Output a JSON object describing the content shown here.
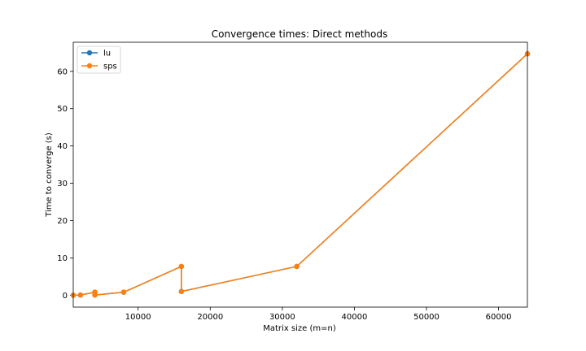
{
  "chart_data": {
    "type": "line",
    "title": "Convergence times: Direct methods",
    "xlabel": "Matrix size (m=n)",
    "ylabel": "Time to converge (s)",
    "xlim": [
      1000,
      64000
    ],
    "ylim": [
      -3.2,
      67.8
    ],
    "xticks": [
      10000,
      20000,
      30000,
      40000,
      50000,
      60000
    ],
    "yticks": [
      0,
      10,
      20,
      30,
      40,
      50,
      60
    ],
    "grid": false,
    "legend_position": "upper-left",
    "series": [
      {
        "name": "lu",
        "color": "#1f77b4",
        "marker": "circle",
        "points": [
          [
            1000,
            0.0
          ],
          [
            2000,
            0.05
          ],
          [
            4000,
            0.8
          ],
          [
            4000,
            0.05
          ],
          [
            8000,
            0.8
          ],
          [
            16000,
            7.7
          ],
          [
            16000,
            1.0
          ],
          [
            32000,
            7.7
          ],
          [
            64000,
            64.7
          ]
        ]
      },
      {
        "name": "sps",
        "color": "#ff7f0e",
        "marker": "circle",
        "points": [
          [
            1000,
            0.0
          ],
          [
            2000,
            0.05
          ],
          [
            4000,
            0.8
          ],
          [
            4000,
            0.05
          ],
          [
            8000,
            0.8
          ],
          [
            16000,
            7.7
          ],
          [
            16000,
            1.0
          ],
          [
            32000,
            7.7
          ],
          [
            64000,
            64.7
          ]
        ]
      }
    ]
  }
}
